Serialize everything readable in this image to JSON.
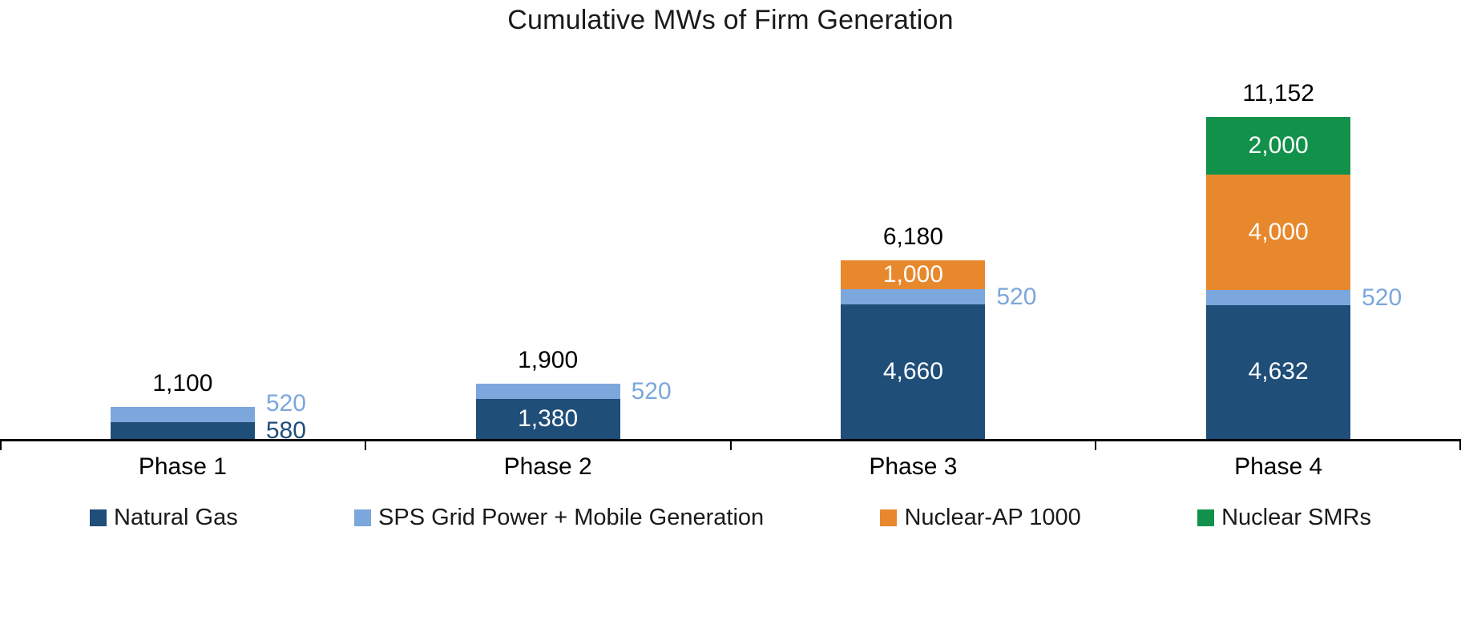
{
  "chart_data": {
    "type": "bar",
    "stacked": true,
    "title": "Cumulative MWs of Firm Generation",
    "xlabel": "",
    "ylabel": "",
    "categories": [
      "Phase 1",
      "Phase 2",
      "Phase 3",
      "Phase 4"
    ],
    "series": [
      {
        "name": "Natural Gas",
        "color": "#1F4E79",
        "values": [
          580,
          1380,
          4660,
          4632
        ]
      },
      {
        "name": "SPS Grid Power + Mobile Generation",
        "color": "#7BA7DC",
        "values": [
          520,
          520,
          520,
          520
        ]
      },
      {
        "name": "Nuclear-AP 1000",
        "color": "#E8882D",
        "values": [
          0,
          0,
          1000,
          4000
        ]
      },
      {
        "name": "Nuclear SMRs",
        "color": "#12914A",
        "values": [
          0,
          0,
          0,
          2000
        ]
      }
    ],
    "totals": [
      1100,
      1900,
      6180,
      11152
    ],
    "total_labels": [
      "1,100",
      "1,900",
      "6,180",
      "11,152"
    ],
    "segment_label_colors": {
      "inside": "#FFFFFF",
      "total": "#000000"
    },
    "ylim": [
      0,
      13000
    ],
    "grid": false,
    "legend_position": "bottom",
    "axis_color": "#000000"
  }
}
